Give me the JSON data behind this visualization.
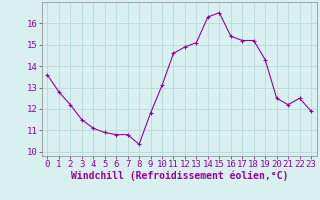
{
  "x": [
    0,
    1,
    2,
    3,
    4,
    5,
    6,
    7,
    8,
    9,
    10,
    11,
    12,
    13,
    14,
    15,
    16,
    17,
    18,
    19,
    20,
    21,
    22,
    23
  ],
  "y": [
    13.6,
    12.8,
    12.2,
    11.5,
    11.1,
    10.9,
    10.8,
    10.8,
    10.35,
    11.8,
    13.1,
    14.6,
    14.9,
    15.1,
    16.3,
    16.5,
    15.4,
    15.2,
    15.2,
    14.3,
    12.5,
    12.2,
    12.5,
    11.9
  ],
  "line_color": "#990099",
  "marker": "+",
  "marker_size": 3,
  "background_color": "#d8f0f0",
  "grid_color": "#b8dada",
  "xlabel": "Windchill (Refroidissement éolien,°C)",
  "xlabel_fontsize": 7,
  "tick_fontsize": 6.5,
  "ylim": [
    9.8,
    17.0
  ],
  "yticks": [
    10,
    11,
    12,
    13,
    14,
    15,
    16
  ],
  "xticks": [
    0,
    1,
    2,
    3,
    4,
    5,
    6,
    7,
    8,
    9,
    10,
    11,
    12,
    13,
    14,
    15,
    16,
    17,
    18,
    19,
    20,
    21,
    22,
    23
  ]
}
